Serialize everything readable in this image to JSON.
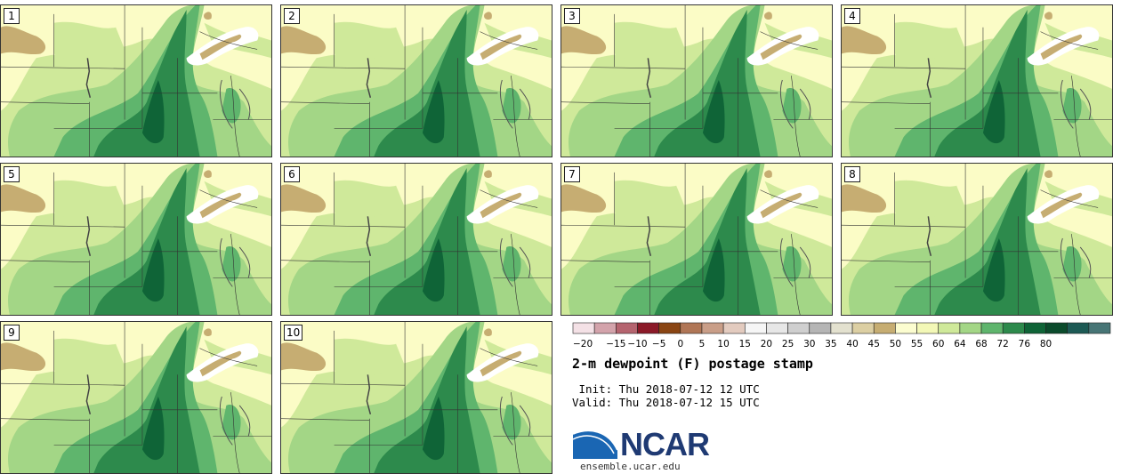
{
  "panels": [
    {
      "label": "1"
    },
    {
      "label": "2"
    },
    {
      "label": "3"
    },
    {
      "label": "4"
    },
    {
      "label": "5"
    },
    {
      "label": "6"
    },
    {
      "label": "7"
    },
    {
      "label": "8"
    },
    {
      "label": "9"
    },
    {
      "label": "10"
    }
  ],
  "colorbar": {
    "colors": [
      "#f4e1e6",
      "#d3a3ab",
      "#b5646f",
      "#8b1a28",
      "#8a4513",
      "#b07656",
      "#c99e88",
      "#e3cbbf",
      "#f6f6f6",
      "#e7e7e7",
      "#cfcfcf",
      "#b5b5b5",
      "#e3e1cf",
      "#dccfa3",
      "#c6ad72",
      "#fcfdd0",
      "#f3f8b7",
      "#cfe99a",
      "#a3d686",
      "#5fb56d",
      "#2d8a4c",
      "#0f6437",
      "#0b4b2c",
      "#1d5a55",
      "#477576"
    ],
    "ticks": [
      "-20",
      "-15",
      "-10",
      "-5",
      "0",
      "5",
      "10",
      "15",
      "20",
      "25",
      "30",
      "35",
      "40",
      "45",
      "50",
      "55",
      "60",
      "64",
      "68",
      "72",
      "76",
      "80"
    ]
  },
  "title": "2-m dewpoint (F) postage stamp",
  "init_label": " Init: Thu 2018-07-12 12 UTC",
  "valid_label": "Valid: Thu 2018-07-12 15 UTC",
  "logo": {
    "text": "NCAR",
    "url": "ensemble.ucar.edu",
    "brand_color": "#1f3a73",
    "swoosh_color": "#1a66b3"
  }
}
